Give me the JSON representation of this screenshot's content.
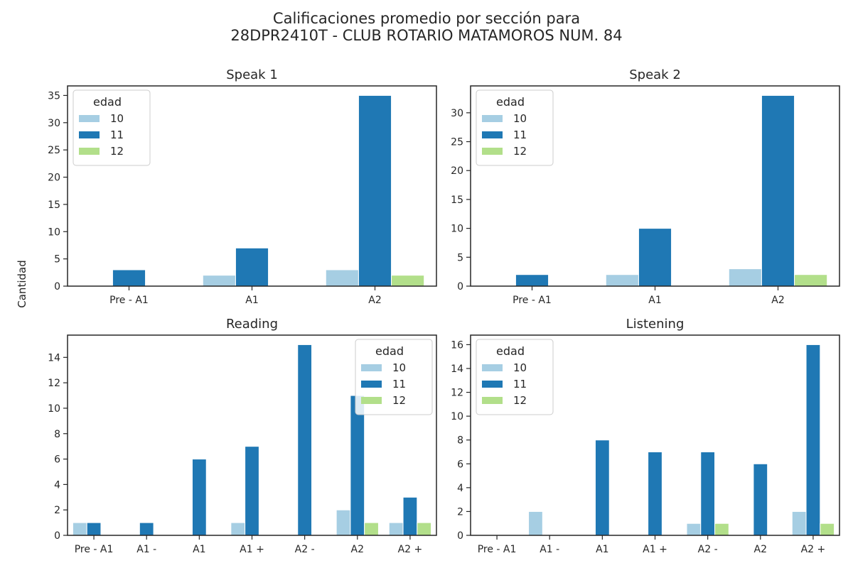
{
  "figure": {
    "title_line1": "Calificaciones promedio por sección para",
    "title_line2": "28DPR2410T - CLUB ROTARIO MATAMOROS NUM. 84",
    "ylabel": "Cantidad"
  },
  "colors": {
    "10": "#a6cee3",
    "11": "#1f78b4",
    "12": "#b2df8a"
  },
  "chart_data": [
    {
      "type": "bar",
      "title": "Speak 1",
      "categories": [
        "Pre - A1",
        "A1",
        "A2"
      ],
      "series": [
        {
          "name": "10",
          "values": [
            0,
            2,
            3
          ]
        },
        {
          "name": "11",
          "values": [
            3,
            7,
            35
          ]
        },
        {
          "name": "12",
          "values": [
            0,
            0,
            2
          ]
        }
      ],
      "ylim": [
        0,
        36.75
      ],
      "yticks": [
        0,
        5,
        10,
        15,
        20,
        25,
        30,
        35
      ],
      "legend": {
        "title": "edad",
        "position": "top-left"
      }
    },
    {
      "type": "bar",
      "title": "Speak 2",
      "categories": [
        "Pre - A1",
        "A1",
        "A2"
      ],
      "series": [
        {
          "name": "10",
          "values": [
            0,
            2,
            3
          ]
        },
        {
          "name": "11",
          "values": [
            2,
            10,
            33
          ]
        },
        {
          "name": "12",
          "values": [
            0,
            0,
            2
          ]
        }
      ],
      "ylim": [
        0,
        34.65
      ],
      "yticks": [
        0,
        5,
        10,
        15,
        20,
        25,
        30
      ],
      "legend": {
        "title": "edad",
        "position": "top-left"
      }
    },
    {
      "type": "bar",
      "title": "Reading",
      "categories": [
        "Pre - A1",
        "A1 -",
        "A1",
        "A1 +",
        "A2 -",
        "A2",
        "A2 +"
      ],
      "series": [
        {
          "name": "10",
          "values": [
            1,
            0,
            0,
            1,
            0,
            2,
            1
          ]
        },
        {
          "name": "11",
          "values": [
            1,
            1,
            6,
            7,
            15,
            11,
            3
          ]
        },
        {
          "name": "12",
          "values": [
            0,
            0,
            0,
            0,
            0,
            1,
            1
          ]
        }
      ],
      "ylim": [
        0,
        15.75
      ],
      "yticks": [
        0,
        2,
        4,
        6,
        8,
        10,
        12,
        14
      ],
      "legend": {
        "title": "edad",
        "position": "top-right"
      }
    },
    {
      "type": "bar",
      "title": "Listening",
      "categories": [
        "Pre - A1",
        "A1 -",
        "A1",
        "A1 +",
        "A2 -",
        "A2",
        "A2 +"
      ],
      "series": [
        {
          "name": "10",
          "values": [
            0,
            2,
            0,
            0,
            1,
            0,
            2
          ]
        },
        {
          "name": "11",
          "values": [
            0,
            0,
            8,
            7,
            7,
            6,
            16
          ]
        },
        {
          "name": "12",
          "values": [
            0,
            0,
            0,
            0,
            1,
            0,
            1
          ]
        }
      ],
      "ylim": [
        0,
        16.8
      ],
      "yticks": [
        0,
        2,
        4,
        6,
        8,
        10,
        12,
        14,
        16
      ],
      "legend": {
        "title": "edad",
        "position": "top-left"
      }
    }
  ]
}
